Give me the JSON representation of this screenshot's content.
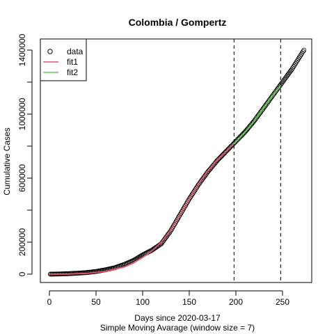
{
  "chart_data": {
    "type": "scatter",
    "title": "Colombia / Gompertz",
    "xlabel": "Days since 2020-03-17",
    "xlabel_sub": "Simple Moving Avarage (window size = 7)",
    "ylabel": "Cumulative Cases",
    "xlim": [
      0,
      280
    ],
    "ylim": [
      0,
      1420000
    ],
    "x_ticks": [
      0,
      50,
      100,
      150,
      200,
      250
    ],
    "y_ticks": [
      0,
      200000,
      600000,
      1000000,
      1400000
    ],
    "y_minor_ticks": [
      400000,
      800000,
      1200000
    ],
    "vlines": [
      198,
      248
    ],
    "legend": {
      "position": "top-left",
      "entries": [
        {
          "label": "data",
          "symbol": "circle",
          "color": "#000000"
        },
        {
          "label": "fit1",
          "symbol": "line",
          "color": "#DF536B"
        },
        {
          "label": "fit2",
          "symbol": "line",
          "color": "#61D04F"
        }
      ]
    },
    "series": [
      {
        "name": "data",
        "kind": "points",
        "color": "#000000",
        "x": [
          1,
          10,
          20,
          30,
          40,
          50,
          60,
          70,
          80,
          90,
          100,
          110,
          120,
          130,
          140,
          150,
          160,
          170,
          180,
          190,
          200,
          210,
          220,
          230,
          240,
          250,
          260,
          273
        ],
        "y": [
          0,
          1000,
          3000,
          6000,
          10000,
          17000,
          27000,
          40000,
          60000,
          85000,
          120000,
          150000,
          190000,
          270000,
          370000,
          470000,
          560000,
          640000,
          710000,
          770000,
          830000,
          890000,
          960000,
          1040000,
          1120000,
          1200000,
          1280000,
          1400000
        ]
      },
      {
        "name": "fit1",
        "kind": "line",
        "color": "#DF536B",
        "x": [
          1,
          20,
          40,
          60,
          80,
          90,
          100,
          110,
          120,
          130,
          140,
          150,
          160,
          170,
          180,
          190,
          198
        ],
        "y": [
          0,
          800,
          5000,
          17000,
          45000,
          70000,
          105000,
          145000,
          200000,
          275000,
          370000,
          470000,
          565000,
          645000,
          715000,
          770000,
          815000
        ]
      },
      {
        "name": "fit2",
        "kind": "line",
        "color": "#61D04F",
        "x": [
          198,
          208,
          218,
          228,
          238,
          248
        ],
        "y": [
          815000,
          875000,
          945000,
          1025000,
          1105000,
          1180000
        ]
      }
    ]
  }
}
